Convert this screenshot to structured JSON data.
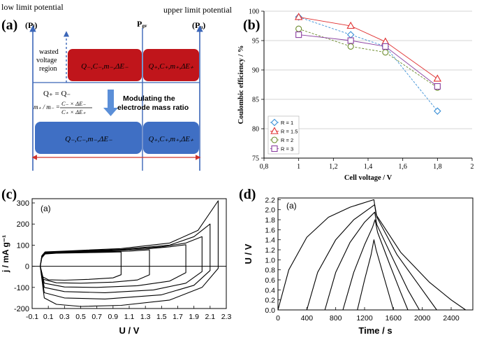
{
  "panel_a": {
    "letter": "(a)",
    "low_label": "low limit potential",
    "upper_label": "upper limit potential",
    "pl_label": "(Pₗ)",
    "p0v_label": "P₀ᵥ",
    "pu_label": "(Pᵤ)",
    "wasted_line1": "wasted",
    "wasted_line2": "voltage",
    "wasted_line3": "region",
    "equation1": "Q₊ = Q₋",
    "ratio_left": "m₊ / m₋ =",
    "ratio_num": "C₋ × ΔE₋",
    "ratio_den": "C₊ × ΔE₊",
    "modulating_line1": "Modulating the",
    "modulating_line2": "electrode mass ratio",
    "top_red_left": "Q₋,C₋,m₋,ΔE₋",
    "top_red_right": "Q₊,C₊,m₊,ΔE₊",
    "bottom_blue_left": "Q₋,C₋,m₋,ΔE₋",
    "bottom_blue_right": "Q₊,C₊,m₊,ΔE₊",
    "colors": {
      "red": "#c0151b",
      "blue": "#3f6fc4",
      "line": "#3b66b8",
      "arrow": "#d0342c"
    }
  },
  "chart_data": [
    {
      "panel": "b",
      "type": "line",
      "letter": "(b)",
      "xlabel": "Cell voltage / V",
      "ylabel": "Coulombic efficiency / %",
      "xlim": [
        0.8,
        2.0
      ],
      "ylim": [
        75,
        100
      ],
      "xticks": [
        "0,8",
        "1",
        "1,2",
        "1,4",
        "1,6",
        "1,8",
        "2"
      ],
      "xtick_values": [
        0.8,
        1.0,
        1.2,
        1.4,
        1.6,
        1.8,
        2.0
      ],
      "yticks": [
        "75",
        "80",
        "85",
        "90",
        "95",
        "100"
      ],
      "ytick_values": [
        75,
        80,
        85,
        90,
        95,
        100
      ],
      "grid": "horizontal",
      "legend_position": "bottom-left",
      "x": [
        1.0,
        1.3,
        1.5,
        1.8
      ],
      "series": [
        {
          "name": "R = 1",
          "marker": "diamond",
          "color": "#3a8fd6",
          "values": [
            99,
            96,
            94,
            83
          ]
        },
        {
          "name": "R = 1.5",
          "marker": "triangle",
          "color": "#e03030",
          "values": [
            99,
            97.5,
            94.8,
            88.5
          ]
        },
        {
          "name": "R = 2",
          "marker": "circle",
          "color": "#6a8a2a",
          "values": [
            97,
            94,
            93,
            87
          ]
        },
        {
          "name": "R = 3",
          "marker": "square",
          "color": "#8a3fa0",
          "values": [
            96,
            95,
            94,
            87.2
          ]
        }
      ]
    },
    {
      "panel": "c",
      "type": "line",
      "letter": "(c)",
      "inner_label": "(a)",
      "xlabel": "U / V",
      "ylabel": "j / mA g⁻¹",
      "xlim": [
        -0.1,
        2.3
      ],
      "ylim": [
        -200,
        320
      ],
      "xticks": [
        "-0.1",
        "0.1",
        "0.3",
        "0.5",
        "0.7",
        "0.9",
        "1.1",
        "1.3",
        "1.5",
        "1.7",
        "1.9",
        "2.1",
        "2.3"
      ],
      "xtick_values": [
        -0.1,
        0.1,
        0.3,
        0.5,
        0.7,
        0.9,
        1.1,
        1.3,
        1.5,
        1.7,
        1.9,
        2.1,
        2.3
      ],
      "yticks": [
        "-200",
        "-100",
        "0",
        "100",
        "200",
        "300"
      ],
      "ytick_values": [
        -200,
        -100,
        0,
        100,
        200,
        300
      ],
      "series": [
        {
          "values": [
            [
              0,
              0
            ],
            [
              0.02,
              40
            ],
            [
              0.06,
              58
            ],
            [
              0.2,
              62
            ],
            [
              0.5,
              64
            ],
            [
              0.8,
              66
            ],
            [
              1.0,
              68
            ],
            [
              1.0,
              -40
            ],
            [
              0.9,
              -55
            ],
            [
              0.6,
              -62
            ],
            [
              0.3,
              -66
            ],
            [
              0.1,
              -64
            ],
            [
              0.03,
              -50
            ],
            [
              0,
              0
            ]
          ]
        },
        {
          "values": [
            [
              0,
              0
            ],
            [
              0.02,
              42
            ],
            [
              0.06,
              60
            ],
            [
              0.3,
              64
            ],
            [
              0.7,
              68
            ],
            [
              1.1,
              72
            ],
            [
              1.35,
              78
            ],
            [
              1.35,
              -40
            ],
            [
              1.2,
              -65
            ],
            [
              0.9,
              -75
            ],
            [
              0.5,
              -80
            ],
            [
              0.2,
              -78
            ],
            [
              0.04,
              -62
            ],
            [
              0,
              0
            ]
          ]
        },
        {
          "values": [
            [
              0,
              0
            ],
            [
              0.02,
              44
            ],
            [
              0.06,
              62
            ],
            [
              0.3,
              66
            ],
            [
              0.8,
              72
            ],
            [
              1.3,
              82
            ],
            [
              1.6,
              92
            ],
            [
              1.8,
              102
            ],
            [
              1.8,
              -30
            ],
            [
              1.6,
              -70
            ],
            [
              1.2,
              -92
            ],
            [
              0.7,
              -100
            ],
            [
              0.3,
              -98
            ],
            [
              0.05,
              -80
            ],
            [
              0,
              0
            ]
          ]
        },
        {
          "values": [
            [
              0,
              0
            ],
            [
              0.02,
              46
            ],
            [
              0.06,
              64
            ],
            [
              0.3,
              68
            ],
            [
              0.9,
              76
            ],
            [
              1.5,
              92
            ],
            [
              1.8,
              110
            ],
            [
              2.0,
              140
            ],
            [
              2.0,
              -25
            ],
            [
              1.8,
              -80
            ],
            [
              1.4,
              -112
            ],
            [
              0.8,
              -125
            ],
            [
              0.3,
              -120
            ],
            [
              0.05,
              -100
            ],
            [
              0,
              0
            ]
          ]
        },
        {
          "values": [
            [
              0,
              0
            ],
            [
              0.02,
              48
            ],
            [
              0.06,
              66
            ],
            [
              0.3,
              70
            ],
            [
              1.0,
              80
            ],
            [
              1.6,
              100
            ],
            [
              1.9,
              140
            ],
            [
              2.1,
              200
            ],
            [
              2.1,
              -20
            ],
            [
              1.9,
              -90
            ],
            [
              1.5,
              -135
            ],
            [
              0.8,
              -155
            ],
            [
              0.3,
              -150
            ],
            [
              0.05,
              -125
            ],
            [
              0,
              0
            ]
          ]
        },
        {
          "values": [
            [
              0,
              0
            ],
            [
              0.02,
              50
            ],
            [
              0.06,
              68
            ],
            [
              0.3,
              72
            ],
            [
              1.0,
              84
            ],
            [
              1.6,
              110
            ],
            [
              1.95,
              170
            ],
            [
              2.2,
              310
            ],
            [
              2.2,
              -10
            ],
            [
              2.0,
              -100
            ],
            [
              1.6,
              -160
            ],
            [
              1.0,
              -185
            ],
            [
              0.5,
              -190
            ],
            [
              0.2,
              -180
            ],
            [
              0.05,
              -150
            ],
            [
              0,
              0
            ]
          ]
        }
      ]
    },
    {
      "panel": "d",
      "type": "line",
      "letter": "(d)",
      "inner_label": "(a)",
      "xlabel": "Time / s",
      "ylabel": "U / V",
      "xlim": [
        0,
        2700
      ],
      "ylim": [
        0,
        2.2
      ],
      "xticks": [
        "0",
        "400",
        "800",
        "1200",
        "1600",
        "2000",
        "2400"
      ],
      "xtick_values": [
        0,
        400,
        800,
        1200,
        1600,
        2000,
        2400
      ],
      "yticks": [
        "0.0",
        "0.2",
        "0.4",
        "0.6",
        "0.8",
        "1.0",
        "1.2",
        "1.4",
        "1.6",
        "1.8",
        "2.0",
        "2.2"
      ],
      "ytick_values": [
        0,
        0.2,
        0.4,
        0.6,
        0.8,
        1.0,
        1.2,
        1.4,
        1.6,
        1.8,
        2.0,
        2.2
      ],
      "series": [
        {
          "values": [
            [
              0,
              0
            ],
            [
              150,
              0.8
            ],
            [
              400,
              1.45
            ],
            [
              700,
              1.85
            ],
            [
              1000,
              2.05
            ],
            [
              1330,
              2.2
            ],
            [
              1360,
              1.9
            ],
            [
              1700,
              1.15
            ],
            [
              2100,
              0.55
            ],
            [
              2400,
              0.2
            ],
            [
              2600,
              0
            ]
          ]
        },
        {
          "values": [
            [
              400,
              0
            ],
            [
              550,
              0.75
            ],
            [
              800,
              1.4
            ],
            [
              1050,
              1.8
            ],
            [
              1340,
              2.1
            ],
            [
              1370,
              1.85
            ],
            [
              1650,
              1.1
            ],
            [
              1950,
              0.5
            ],
            [
              2200,
              0
            ]
          ]
        },
        {
          "values": [
            [
              650,
              0
            ],
            [
              800,
              0.75
            ],
            [
              1000,
              1.35
            ],
            [
              1200,
              1.75
            ],
            [
              1340,
              1.95
            ],
            [
              1370,
              1.7
            ],
            [
              1600,
              1.0
            ],
            [
              1800,
              0.4
            ],
            [
              1960,
              0
            ]
          ]
        },
        {
          "values": [
            [
              900,
              0
            ],
            [
              1050,
              0.75
            ],
            [
              1200,
              1.3
            ],
            [
              1310,
              1.65
            ],
            [
              1345,
              1.8
            ],
            [
              1380,
              1.55
            ],
            [
              1550,
              0.9
            ],
            [
              1700,
              0.35
            ],
            [
              1800,
              0
            ]
          ]
        },
        {
          "values": [
            [
              1100,
              0
            ],
            [
              1200,
              0.6
            ],
            [
              1290,
              1.1
            ],
            [
              1330,
              1.4
            ],
            [
              1360,
              1.2
            ],
            [
              1480,
              0.6
            ],
            [
              1600,
              0
            ]
          ]
        }
      ]
    }
  ]
}
